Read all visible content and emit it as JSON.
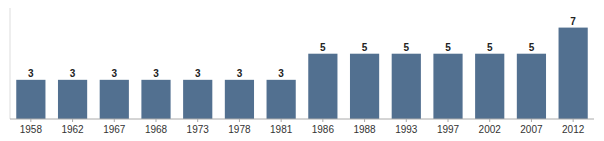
{
  "chart_data": {
    "type": "bar",
    "categories": [
      "1958",
      "1962",
      "1967",
      "1968",
      "1973",
      "1978",
      "1981",
      "1986",
      "1988",
      "1993",
      "1997",
      "2002",
      "2007",
      "2012"
    ],
    "values": [
      3,
      3,
      3,
      3,
      3,
      3,
      3,
      5,
      5,
      5,
      5,
      5,
      5,
      7
    ],
    "color": "#527090",
    "ylim": [
      0,
      8.5
    ],
    "data_labels": true,
    "tick_labels": "x",
    "grid": false
  }
}
